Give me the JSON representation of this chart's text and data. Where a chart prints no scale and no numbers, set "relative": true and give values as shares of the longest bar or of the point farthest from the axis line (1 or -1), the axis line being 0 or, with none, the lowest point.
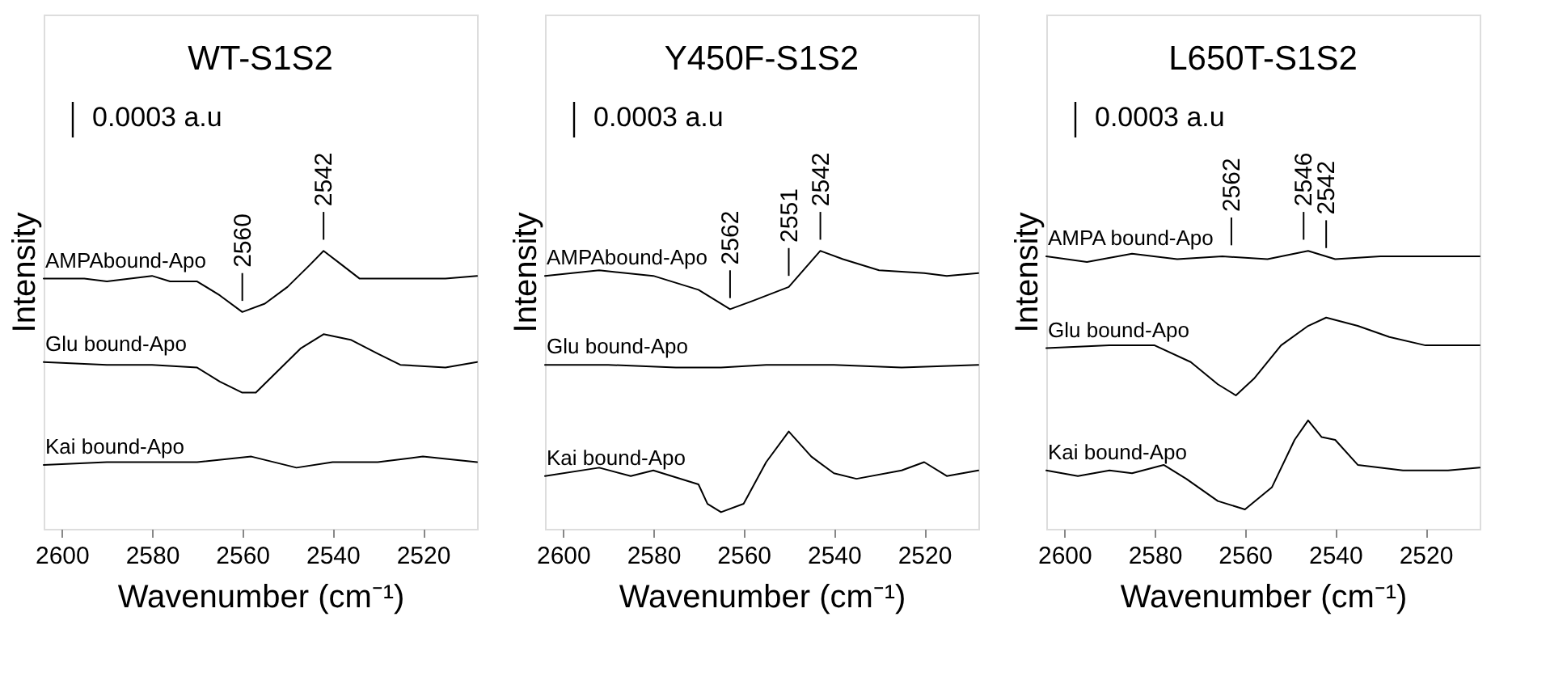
{
  "chart_data": [
    {
      "type": "line",
      "title": "WT-S1S2",
      "xlabel": "Wavenumber (cm⁻¹)",
      "ylabel": "Intensity",
      "relative": true,
      "tick_labels": "x",
      "grid": false,
      "xlim": [
        2604,
        2508
      ],
      "xticks": [
        2600,
        2580,
        2560,
        2540,
        2520
      ],
      "annotations": [
        "0.0003 a.u",
        {
          "text": "2560",
          "x": 2560,
          "y": 0.78
        },
        {
          "text": "2542",
          "x": 2542,
          "y": 1.0
        }
      ],
      "series": [
        {
          "name": "AMPAbound-Apo",
          "color": "#000000",
          "x": [
            2604,
            2595,
            2590,
            2580,
            2576,
            2570,
            2565,
            2560,
            2555,
            2550,
            2545,
            2542,
            2538,
            2534,
            2525,
            2515,
            2508
          ],
          "values": [
            0.9,
            0.9,
            0.89,
            0.91,
            0.89,
            0.89,
            0.84,
            0.78,
            0.81,
            0.87,
            0.95,
            1.0,
            0.95,
            0.9,
            0.9,
            0.9,
            0.91
          ]
        },
        {
          "name": "Glu bound-Apo",
          "color": "#000000",
          "x": [
            2604,
            2590,
            2580,
            2570,
            2565,
            2560,
            2557,
            2552,
            2547,
            2542,
            2536,
            2530,
            2525,
            2515,
            2508
          ],
          "values": [
            0.6,
            0.59,
            0.59,
            0.58,
            0.53,
            0.49,
            0.49,
            0.57,
            0.65,
            0.7,
            0.68,
            0.63,
            0.59,
            0.58,
            0.6
          ]
        },
        {
          "name": "Kai bound-Apo",
          "color": "#000000",
          "x": [
            2604,
            2590,
            2570,
            2558,
            2548,
            2540,
            2530,
            2520,
            2508
          ],
          "values": [
            0.23,
            0.24,
            0.24,
            0.26,
            0.22,
            0.24,
            0.24,
            0.26,
            0.24
          ]
        }
      ]
    },
    {
      "type": "line",
      "title": "Y450F-S1S2",
      "xlabel": "Wavenumber (cm⁻¹)",
      "ylabel": "Intensity",
      "relative": true,
      "tick_labels": "x",
      "grid": false,
      "xlim": [
        2604,
        2508
      ],
      "xticks": [
        2600,
        2580,
        2560,
        2540,
        2520
      ],
      "annotations": [
        "0.0003 a.u",
        {
          "text": "2562",
          "x": 2563,
          "y": 0.79
        },
        {
          "text": "2551",
          "x": 2550,
          "y": 0.87
        },
        {
          "text": "2542",
          "x": 2543,
          "y": 1.0
        }
      ],
      "series": [
        {
          "name": "AMPAbound-Apo",
          "color": "#000000",
          "x": [
            2604,
            2592,
            2580,
            2570,
            2563,
            2558,
            2550,
            2543,
            2538,
            2530,
            2520,
            2515,
            2508
          ],
          "values": [
            0.91,
            0.93,
            0.91,
            0.86,
            0.79,
            0.82,
            0.87,
            1.0,
            0.97,
            0.93,
            0.92,
            0.91,
            0.92
          ]
        },
        {
          "name": "Glu bound-Apo",
          "color": "#000000",
          "x": [
            2604,
            2590,
            2575,
            2565,
            2555,
            2540,
            2525,
            2508
          ],
          "values": [
            0.59,
            0.59,
            0.58,
            0.58,
            0.59,
            0.59,
            0.58,
            0.59
          ]
        },
        {
          "name": "Kai bound-Apo",
          "color": "#000000",
          "x": [
            2604,
            2592,
            2585,
            2580,
            2570,
            2568,
            2565,
            2560,
            2555,
            2550,
            2545,
            2540,
            2535,
            2525,
            2520,
            2515,
            2508
          ],
          "values": [
            0.19,
            0.22,
            0.19,
            0.21,
            0.16,
            0.09,
            0.06,
            0.09,
            0.24,
            0.35,
            0.26,
            0.2,
            0.18,
            0.21,
            0.24,
            0.19,
            0.21
          ]
        }
      ]
    },
    {
      "type": "line",
      "title": "L650T-S1S2",
      "xlabel": "Wavenumber (cm⁻¹)",
      "ylabel": "Intensity",
      "relative": true,
      "tick_labels": "x",
      "grid": false,
      "xlim": [
        2604,
        2508
      ],
      "xticks": [
        2600,
        2580,
        2560,
        2540,
        2520
      ],
      "annotations": [
        "0.0003 a.u",
        {
          "text": "2562",
          "x": 2563,
          "y": 0.98
        },
        {
          "text": "2546",
          "x": 2547,
          "y": 1.0
        },
        {
          "text": "2542",
          "x": 2542,
          "y": 0.97
        }
      ],
      "series": [
        {
          "name": "AMPA bound-Apo",
          "color": "#000000",
          "x": [
            2604,
            2595,
            2585,
            2575,
            2565,
            2555,
            2546,
            2540,
            2530,
            2520,
            2508
          ],
          "values": [
            0.98,
            0.96,
            0.99,
            0.97,
            0.98,
            0.97,
            1.0,
            0.97,
            0.98,
            0.98,
            0.98
          ]
        },
        {
          "name": "Glu bound-Apo",
          "color": "#000000",
          "x": [
            2604,
            2590,
            2580,
            2572,
            2566,
            2562,
            2558,
            2552,
            2546,
            2542,
            2535,
            2528,
            2520,
            2508
          ],
          "values": [
            0.65,
            0.66,
            0.66,
            0.6,
            0.52,
            0.48,
            0.54,
            0.66,
            0.73,
            0.76,
            0.73,
            0.69,
            0.66,
            0.66
          ]
        },
        {
          "name": "Kai bound-Apo",
          "color": "#000000",
          "x": [
            2604,
            2597,
            2590,
            2585,
            2578,
            2573,
            2566,
            2560,
            2554,
            2549,
            2546,
            2543,
            2540,
            2535,
            2525,
            2515,
            2508
          ],
          "values": [
            0.21,
            0.19,
            0.21,
            0.2,
            0.23,
            0.18,
            0.1,
            0.07,
            0.15,
            0.32,
            0.39,
            0.33,
            0.32,
            0.23,
            0.21,
            0.21,
            0.22
          ]
        }
      ]
    }
  ]
}
